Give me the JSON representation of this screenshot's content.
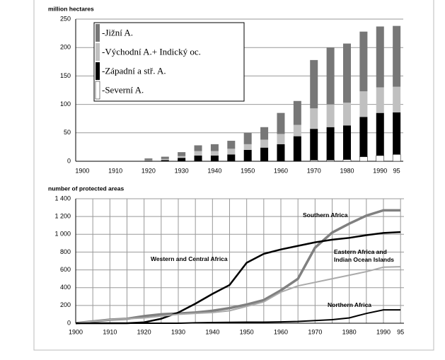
{
  "chart_data": [
    {
      "type": "bar",
      "stacked": true,
      "y_label": "million hectares",
      "x": [
        1920,
        1925,
        1930,
        1935,
        1940,
        1945,
        1950,
        1955,
        1960,
        1965,
        1970,
        1975,
        1980,
        1985,
        1990,
        1995
      ],
      "xlim": [
        1898,
        1997
      ],
      "xticks": [
        1900,
        1910,
        1920,
        1930,
        1940,
        1950,
        1960,
        1970,
        1980,
        1990,
        {
          "value": 1995,
          "label": "95"
        }
      ],
      "ylim": [
        0,
        250
      ],
      "yticks": [
        0,
        50,
        100,
        150,
        200,
        250
      ],
      "grid": true,
      "series": [
        {
          "name": "-Severní A.",
          "color": "#ffffff",
          "values": [
            0,
            0,
            0,
            0,
            0,
            0,
            0,
            0,
            0,
            0,
            2,
            2,
            3,
            8,
            10,
            12
          ]
        },
        {
          "name": "-Západní a stř. A.",
          "color": "#000000",
          "values": [
            1,
            2,
            6,
            10,
            10,
            12,
            20,
            24,
            30,
            44,
            55,
            58,
            60,
            70,
            75,
            74
          ]
        },
        {
          "name": "-Východní A.+ Indický oc.",
          "color": "#c0c0c0",
          "values": [
            1,
            2,
            3,
            8,
            8,
            10,
            10,
            14,
            18,
            20,
            36,
            40,
            40,
            45,
            45,
            45
          ]
        },
        {
          "name": "-Jižní A.",
          "color": "#777777",
          "values": [
            3,
            4,
            7,
            10,
            12,
            14,
            20,
            22,
            37,
            42,
            85,
            100,
            104,
            105,
            107,
            107
          ]
        }
      ]
    },
    {
      "type": "line",
      "y_label": "number of protected areas",
      "x": [
        1900,
        1905,
        1910,
        1915,
        1920,
        1925,
        1930,
        1935,
        1940,
        1945,
        1950,
        1955,
        1960,
        1965,
        1970,
        1975,
        1980,
        1985,
        1990,
        1995
      ],
      "xlim": [
        1900,
        1996
      ],
      "xticks": [
        1900,
        1910,
        1920,
        1930,
        1940,
        1950,
        1960,
        1970,
        1980,
        1990,
        {
          "value": 1995,
          "label": "95"
        }
      ],
      "ylim": [
        0,
        1400
      ],
      "yticks": [
        0,
        200,
        400,
        600,
        800,
        {
          "value": 1000,
          "label": "1 000"
        },
        {
          "value": 1200,
          "label": "1 200"
        },
        {
          "value": 1400,
          "label": "1 400"
        }
      ],
      "grid": true,
      "series": [
        {
          "name": "Southern Africa",
          "color": "#808080",
          "values": [
            0,
            20,
            40,
            50,
            80,
            100,
            110,
            120,
            140,
            170,
            210,
            260,
            370,
            500,
            850,
            1020,
            1120,
            1210,
            1270,
            1270
          ]
        },
        {
          "name": "Western and Central Africa",
          "color": "#000000",
          "values": [
            0,
            0,
            0,
            0,
            10,
            50,
            120,
            220,
            330,
            430,
            680,
            780,
            830,
            870,
            910,
            940,
            960,
            990,
            1015,
            1025
          ]
        },
        {
          "name": "Eastern Africa and Indian Ocean Islands",
          "color": "#aaaaaa",
          "values": [
            0,
            20,
            40,
            50,
            60,
            80,
            100,
            110,
            120,
            140,
            190,
            240,
            350,
            420,
            460,
            500,
            540,
            580,
            630,
            635
          ]
        },
        {
          "name": "Northern Africa",
          "color": "#000000",
          "values": [
            0,
            0,
            0,
            0,
            0,
            0,
            0,
            5,
            8,
            10,
            12,
            12,
            15,
            20,
            30,
            40,
            60,
            110,
            150,
            150
          ]
        }
      ]
    }
  ]
}
